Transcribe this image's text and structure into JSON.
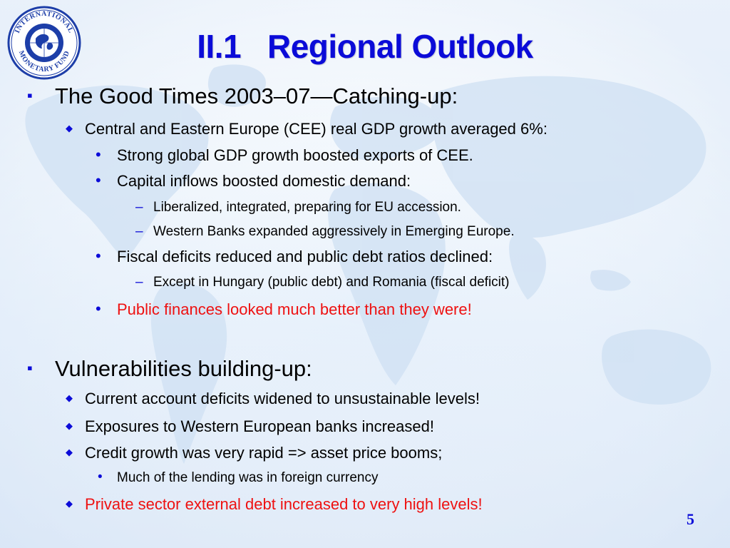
{
  "slide": {
    "title": "II.1   Regional Outlook",
    "page_number": "5",
    "logo": {
      "text_top": "INTERNATIONAL",
      "text_bottom": "MONETARY FUND",
      "icon": "imf-seal-icon"
    },
    "colors": {
      "title": "#0b0bd8",
      "bullet": "#0b0bd8",
      "highlight": "#ee1111",
      "text": "#000000"
    },
    "items": [
      {
        "level": 1,
        "bullet": "▪",
        "text": "The Good Times 2003–07—Catching-up:"
      },
      {
        "level": 2,
        "bullet": "◆",
        "text": "Central and Eastern Europe (CEE) real GDP growth averaged 6%:"
      },
      {
        "level": 3,
        "bullet": "•",
        "text": "Strong global GDP growth boosted exports of CEE."
      },
      {
        "level": 3,
        "bullet": "•",
        "text": "Capital inflows boosted domestic demand:"
      },
      {
        "level": 4,
        "bullet": "–",
        "text": "Liberalized, integrated, preparing for EU accession."
      },
      {
        "level": 4,
        "bullet": "–",
        "text": "Western Banks expanded aggressively in Emerging Europe."
      },
      {
        "level": 3,
        "bullet": "•",
        "text": "Fiscal deficits reduced and public debt ratios declined:"
      },
      {
        "level": 4,
        "bullet": "–",
        "text": "Except in Hungary (public debt) and Romania (fiscal deficit)"
      },
      {
        "level": 3,
        "bullet": "•",
        "text": "Public finances looked much better than they were!",
        "highlight": true
      },
      {
        "level": 1,
        "bullet": "▪",
        "text": "Vulnerabilities building-up:"
      },
      {
        "level": 2,
        "bullet": "◆",
        "text": "Current account deficits widened to unsustainable levels!"
      },
      {
        "level": 2,
        "bullet": "◆",
        "text": "Exposures to Western European banks increased!"
      },
      {
        "level": 2,
        "bullet": "◆",
        "text": "Credit growth was very rapid => asset price booms;"
      },
      {
        "level": 3,
        "bullet": "•",
        "text": "Much of the lending was in foreign currency",
        "small": true
      },
      {
        "level": 2,
        "bullet": "◆",
        "text": "Private sector external debt increased to very high levels!",
        "highlight": true
      }
    ]
  }
}
